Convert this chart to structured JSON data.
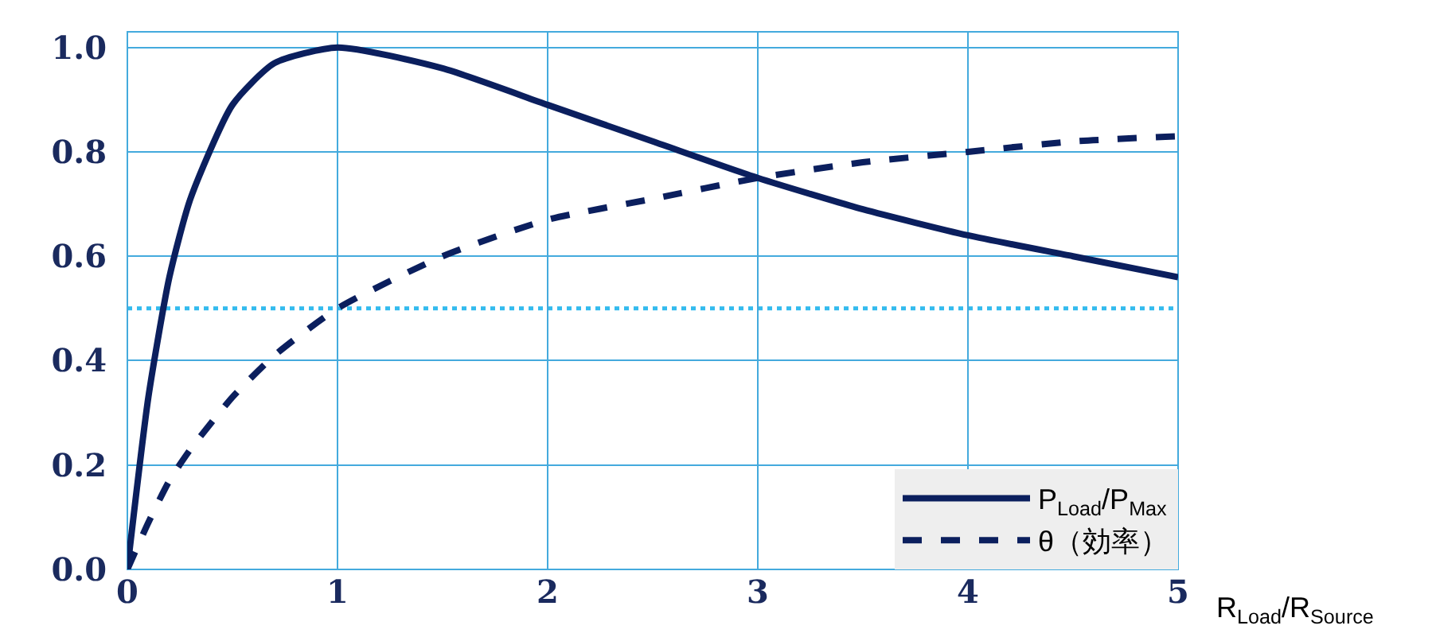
{
  "chart_data": {
    "type": "line",
    "xlabel": "R$_{Load}$/R$_{Source}$",
    "xlim": [
      0,
      5
    ],
    "xticks": [
      0,
      1,
      2,
      3,
      4,
      5
    ],
    "ylim": [
      0,
      1.03
    ],
    "yticks": [
      {
        "value": 0,
        "label": "0.0"
      },
      0.2,
      0.4,
      0.6,
      0.8,
      {
        "value": 1,
        "label": "1.0"
      }
    ],
    "grid": true,
    "legend": "bottom right",
    "series": [
      {
        "name": "P$_{Load}$/P$_{Max}$",
        "color": "#0b1f5e",
        "line_style": "solid",
        "x": [
          0,
          0.1,
          0.2,
          0.3,
          0.5,
          0.7,
          1,
          1.5,
          2,
          2.5,
          3,
          3.5,
          4,
          4.5,
          5
        ],
        "values": [
          0,
          0.33,
          0.56,
          0.71,
          0.89,
          0.97,
          1.0,
          0.96,
          0.89,
          0.82,
          0.75,
          0.69,
          0.64,
          0.6,
          0.56
        ]
      },
      {
        "name": "θ（効率）",
        "color": "#0b1f5e",
        "line_style": "dashed",
        "x": [
          0,
          0.1,
          0.2,
          0.3,
          0.5,
          0.7,
          1,
          1.5,
          2,
          2.5,
          3,
          3.5,
          4,
          4.5,
          5
        ],
        "values": [
          0,
          0.09,
          0.17,
          0.23,
          0.33,
          0.41,
          0.5,
          0.6,
          0.67,
          0.71,
          0.75,
          0.78,
          0.8,
          0.82,
          0.83
        ]
      }
    ],
    "ref_lines": [
      {
        "axis": "y",
        "value": 0.5,
        "color": "#33bbee",
        "line_style": "dotted"
      }
    ]
  }
}
